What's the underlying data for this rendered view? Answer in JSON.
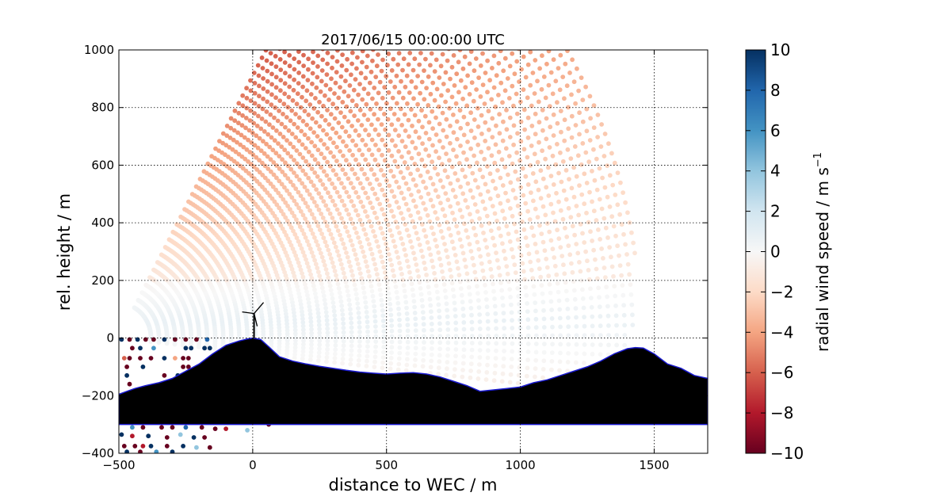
{
  "chart_data": {
    "type": "scatter",
    "title": "2017/06/15 00:00:00 UTC",
    "xlabel": "distance to WEC / m",
    "ylabel": "rel. height / m",
    "xlim": [
      -500,
      1700
    ],
    "ylim": [
      -400,
      1000
    ],
    "xticks": [
      -500,
      0,
      500,
      1000,
      1500
    ],
    "xtick_labels": [
      "−500",
      "0",
      "500",
      "1000",
      "1500"
    ],
    "yticks": [
      -400,
      -200,
      0,
      200,
      400,
      600,
      800,
      1000
    ],
    "ytick_labels": [
      "−400",
      "−200",
      "0",
      "200",
      "400",
      "600",
      "800",
      "1000"
    ],
    "grid": true,
    "colormap": "RdBu",
    "colorbar": {
      "label": "radial wind speed / m s",
      "label_exponent": "−1",
      "range": [
        -10,
        10
      ],
      "ticks": [
        -10,
        -8,
        -6,
        -4,
        -2,
        0,
        2,
        4,
        6,
        8,
        10
      ],
      "tick_labels": [
        "−10",
        "−8",
        "−6",
        "−4",
        "−2",
        "0",
        "2",
        "4",
        "6",
        "8",
        "10"
      ]
    },
    "scan": {
      "scanner_position": [
        -500,
        0
      ],
      "max_range": 1950,
      "x_end": 1430,
      "description_values": "radial wind speed approx. -6 to -7 in upper-left, -2 to -3 in upper-right, about +0.5 in the 0-200 m layer"
    },
    "terrain": {
      "x": [
        -500,
        -470,
        -440,
        -400,
        -350,
        -300,
        -250,
        -200,
        -150,
        -100,
        -50,
        -20,
        0,
        30,
        60,
        100,
        150,
        200,
        250,
        300,
        350,
        400,
        450,
        500,
        550,
        600,
        650,
        700,
        750,
        800,
        850,
        900,
        950,
        1000,
        1050,
        1100,
        1150,
        1200,
        1250,
        1300,
        1350,
        1400,
        1430,
        1460,
        1500,
        1550,
        1600,
        1650,
        1700
      ],
      "y": [
        -195,
        -185,
        -175,
        -165,
        -155,
        -140,
        -115,
        -90,
        -55,
        -25,
        -10,
        -3,
        0,
        -5,
        -30,
        -65,
        -80,
        -90,
        -98,
        -105,
        -112,
        -118,
        -122,
        -125,
        -122,
        -120,
        -125,
        -135,
        -150,
        -165,
        -185,
        -180,
        -175,
        -170,
        -155,
        -145,
        -130,
        -115,
        -100,
        -80,
        -55,
        -37,
        -33,
        -35,
        -55,
        -90,
        -105,
        -130,
        -140
      ],
      "base": -300,
      "fill_color": "#000000",
      "edge_color": "#1a1ad0"
    },
    "turbine": {
      "x": 5,
      "hub_height": 85,
      "label": "WEC"
    },
    "invalid_points": [
      [
        -490,
        -5,
        10
      ],
      [
        -460,
        -5,
        -10
      ],
      [
        -430,
        -5,
        10
      ],
      [
        -400,
        -5,
        -10
      ],
      [
        -370,
        -5,
        -10
      ],
      [
        -330,
        -5,
        10
      ],
      [
        -290,
        -5,
        -10
      ],
      [
        -250,
        -5,
        -10
      ],
      [
        -210,
        -5,
        -10
      ],
      [
        -170,
        -5,
        8
      ],
      [
        -450,
        -35,
        -10
      ],
      [
        -420,
        -35,
        10
      ],
      [
        -370,
        -35,
        6
      ],
      [
        -250,
        -35,
        10
      ],
      [
        -230,
        -35,
        10
      ],
      [
        -180,
        -35,
        10
      ],
      [
        -160,
        -35,
        10
      ],
      [
        -480,
        -70,
        -6
      ],
      [
        -460,
        -70,
        -10
      ],
      [
        -420,
        -70,
        -10
      ],
      [
        -380,
        -70,
        -10
      ],
      [
        -330,
        -70,
        10
      ],
      [
        -290,
        -70,
        -4
      ],
      [
        -260,
        -70,
        -10
      ],
      [
        -240,
        -70,
        -10
      ],
      [
        -470,
        -100,
        -10
      ],
      [
        -410,
        -100,
        10
      ],
      [
        -260,
        -100,
        -10
      ],
      [
        -240,
        -100,
        -10
      ],
      [
        -470,
        -130,
        10
      ],
      [
        -330,
        -130,
        -10
      ],
      [
        -280,
        -130,
        10
      ],
      [
        -460,
        -160,
        -10
      ],
      [
        -340,
        -160,
        -10
      ],
      [
        -470,
        -220,
        -10
      ],
      [
        -380,
        -220,
        10
      ],
      [
        -460,
        -250,
        -10
      ],
      [
        -410,
        -250,
        10
      ],
      [
        -340,
        -250,
        10
      ],
      [
        -280,
        -250,
        -10
      ],
      [
        -480,
        -280,
        -10
      ],
      [
        -440,
        -280,
        -10
      ],
      [
        -380,
        -280,
        10
      ],
      [
        -250,
        -280,
        -8
      ],
      [
        -150,
        -280,
        10
      ],
      [
        -120,
        -285,
        10
      ],
      [
        60,
        -300,
        -10
      ],
      [
        -450,
        -310,
        6
      ],
      [
        -410,
        -310,
        -10
      ],
      [
        -340,
        -310,
        -10
      ],
      [
        -300,
        -310,
        -10
      ],
      [
        -250,
        -310,
        8
      ],
      [
        -190,
        -310,
        -10
      ],
      [
        -140,
        -315,
        -10
      ],
      [
        -100,
        -315,
        -8
      ],
      [
        -20,
        -320,
        4
      ],
      [
        -490,
        -335,
        10
      ],
      [
        -450,
        -340,
        -8
      ],
      [
        -390,
        -340,
        10
      ],
      [
        -320,
        -345,
        -10
      ],
      [
        -270,
        -335,
        4
      ],
      [
        -220,
        -345,
        10
      ],
      [
        -180,
        -345,
        -10
      ],
      [
        -480,
        -375,
        -10
      ],
      [
        -440,
        -375,
        -10
      ],
      [
        -410,
        -375,
        -8
      ],
      [
        -380,
        -375,
        10
      ],
      [
        -320,
        -375,
        -10
      ],
      [
        -260,
        -375,
        10
      ],
      [
        -210,
        -380,
        4
      ],
      [
        -160,
        -380,
        -10
      ],
      [
        -470,
        -395,
        10
      ],
      [
        -420,
        -395,
        -10
      ],
      [
        -360,
        -395,
        6
      ],
      [
        -300,
        -395,
        10
      ]
    ]
  }
}
